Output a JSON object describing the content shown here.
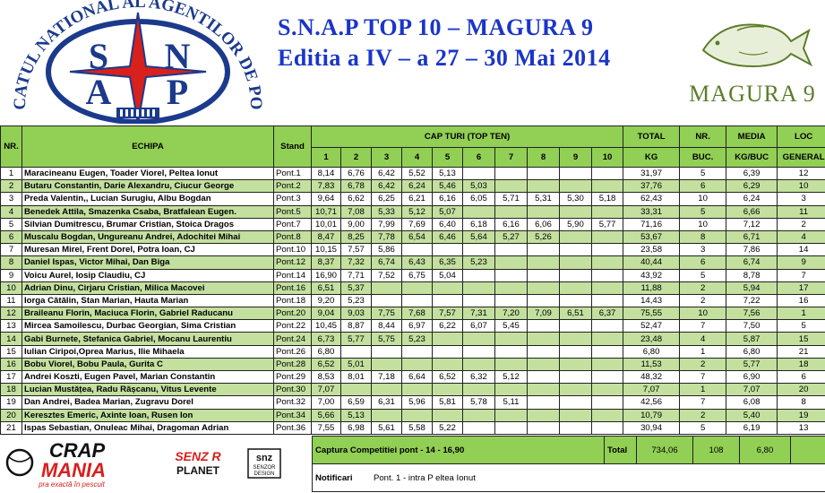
{
  "header": {
    "title_line1": "S.N.A.P    TOP 10 – MAGURA 9",
    "title_line2": "Editia a IV – a 27 – 30 Mai 2014",
    "snap_seal": {
      "ring_text": "SINDICATUL NATIONAL AL AGENTILOR DE POLITIE",
      "letters": [
        "S",
        "N",
        "A",
        "P"
      ]
    },
    "magura_logo": {
      "text": "MAGURA 9",
      "icon": "carp-fish-icon"
    }
  },
  "table": {
    "headers": {
      "nr": "NR.",
      "echipa": "ECHIPA",
      "stand": "Stand",
      "cap_turi": "CAP TURI    (TOP TEN)",
      "total": "TOTAL",
      "total_unit": "KG",
      "nr_buc": "NR.",
      "nr_buc_unit": "BUC.",
      "media": "MEDIA",
      "media_unit": "KG/BUC",
      "loc": "LOC",
      "loc_unit": "GENERAL",
      "cap_numbers": [
        "1",
        "2",
        "3",
        "4",
        "5",
        "6",
        "7",
        "8",
        "9",
        "10"
      ]
    },
    "rows": [
      {
        "nr": "1",
        "team": "Maracineanu Eugen, Toader Viorel, Peltea Ionut",
        "stand": "Pont.1",
        "caps": [
          "8,14",
          "6,76",
          "6,42",
          "5,52",
          "5,13",
          "",
          "",
          "",
          "",
          ""
        ],
        "total": "31,97",
        "buc": "5",
        "media": "6,39",
        "loc": "12"
      },
      {
        "nr": "2",
        "team": "Butaru Constantin, Darie Alexandru, Ciucur George",
        "stand": "Pont.2",
        "caps": [
          "7,83",
          "6,78",
          "6,42",
          "6,24",
          "5,46",
          "5,03",
          "",
          "",
          "",
          ""
        ],
        "total": "37,76",
        "buc": "6",
        "media": "6,29",
        "loc": "10"
      },
      {
        "nr": "3",
        "team": "Preda Valentin,, Lucian Surugiu, Albu Bogdan",
        "stand": "Pont.3",
        "caps": [
          "9,64",
          "6,62",
          "6,25",
          "6,21",
          "6,16",
          "6,05",
          "5,71",
          "5,31",
          "5,30",
          "5,18"
        ],
        "total": "62,43",
        "buc": "10",
        "media": "6,24",
        "loc": "3"
      },
      {
        "nr": "4",
        "team": "Benedek Attila, Smazenka Csaba, Bratfalean Eugen.",
        "stand": "Pont.5",
        "caps": [
          "10,71",
          "7,08",
          "5,33",
          "5,12",
          "5,07",
          "",
          "",
          "",
          "",
          ""
        ],
        "total": "33,31",
        "buc": "5",
        "media": "6,66",
        "loc": "11"
      },
      {
        "nr": "5",
        "team": "Silvian Dumitrescu, Brumar Cristian, Stoica Dragos",
        "stand": "Pont.7",
        "caps": [
          "10,01",
          "9,00",
          "7,99",
          "7,69",
          "6,40",
          "6,18",
          "6,16",
          "6,06",
          "5,90",
          "5,77"
        ],
        "total": "71,16",
        "buc": "10",
        "media": "7,12",
        "loc": "2"
      },
      {
        "nr": "6",
        "team": "Muscalu Bogdan, Ungureanu Andrei, Adochitei Mihai",
        "stand": "Pont.8",
        "caps": [
          "8,47",
          "8,25",
          "7,78",
          "6,54",
          "6,46",
          "5,64",
          "5,27",
          "5,26",
          "",
          ""
        ],
        "total": "53,67",
        "buc": "8",
        "media": "6,71",
        "loc": "4"
      },
      {
        "nr": "7",
        "team": "Muresan Mirel, Frent Dorel, Potra Ioan, CJ",
        "stand": "Pont.10",
        "caps": [
          "10,15",
          "7,57",
          "5,86",
          "",
          "",
          "",
          "",
          "",
          "",
          ""
        ],
        "total": "23,58",
        "buc": "3",
        "media": "7,86",
        "loc": "14"
      },
      {
        "nr": "8",
        "team": "Daniel Ispas, Victor Mihai, Dan Biga",
        "stand": "Pont.12",
        "caps": [
          "8,37",
          "7,32",
          "6,74",
          "6,43",
          "6,35",
          "5,23",
          "",
          "",
          "",
          ""
        ],
        "total": "40,44",
        "buc": "6",
        "media": "6,74",
        "loc": "9"
      },
      {
        "nr": "9",
        "team": "Voicu Aurel, Iosip Claudiu, CJ",
        "stand": "Pont.14",
        "caps": [
          "16,90",
          "7,71",
          "7,52",
          "6,75",
          "5,04",
          "",
          "",
          "",
          "",
          ""
        ],
        "total": "43,92",
        "buc": "5",
        "media": "8,78",
        "loc": "7"
      },
      {
        "nr": "10",
        "team": "Adrian Dinu, Cirjaru Cristian, Milica Macovei",
        "stand": "Pont.16",
        "caps": [
          "6,51",
          "5,37",
          "",
          "",
          "",
          "",
          "",
          "",
          "",
          ""
        ],
        "total": "11,88",
        "buc": "2",
        "media": "5,94",
        "loc": "17"
      },
      {
        "nr": "11",
        "team": "Iorga Cătălin, Stan Marian, Hauta Marian",
        "stand": "Pont.18",
        "caps": [
          "9,20",
          "5,23",
          "",
          "",
          "",
          "",
          "",
          "",
          "",
          ""
        ],
        "total": "14,43",
        "buc": "2",
        "media": "7,22",
        "loc": "16"
      },
      {
        "nr": "12",
        "team": "Braileanu Florin, Maciuca Florin, Gabriel Raducanu",
        "stand": "Pont.20",
        "caps": [
          "9,04",
          "9,03",
          "7,75",
          "7,68",
          "7,57",
          "7,31",
          "7,20",
          "7,09",
          "6,51",
          "6,37"
        ],
        "total": "75,55",
        "buc": "10",
        "media": "7,56",
        "loc": "1"
      },
      {
        "nr": "13",
        "team": "Mircea Samoilescu, Durbac Georgian, Sima Cristian",
        "stand": "Pont.22",
        "caps": [
          "10,45",
          "8,87",
          "8,44",
          "6,97",
          "6,22",
          "6,07",
          "5,45",
          "",
          "",
          ""
        ],
        "total": "52,47",
        "buc": "7",
        "media": "7,50",
        "loc": "5"
      },
      {
        "nr": "14",
        "team": "Gabi Burnete, Stefanica Gabriel, Mocanu Laurentiu",
        "stand": "Pont.24",
        "caps": [
          "6,73",
          "5,77",
          "5,75",
          "5,23",
          "",
          "",
          "",
          "",
          "",
          ""
        ],
        "total": "23,48",
        "buc": "4",
        "media": "5,87",
        "loc": "15"
      },
      {
        "nr": "15",
        "team": "Iulian Ciripoi,Oprea Marius, Ilie Mihaela",
        "stand": "Pont.26",
        "caps": [
          "6,80",
          "",
          "",
          "",
          "",
          "",
          "",
          "",
          "",
          ""
        ],
        "total": "6,80",
        "buc": "1",
        "media": "6,80",
        "loc": "21"
      },
      {
        "nr": "16",
        "team": "Bobu Viorel, Bobu Paula, Gurita C",
        "stand": "Pont.28",
        "caps": [
          "6,52",
          "5,01",
          "",
          "",
          "",
          "",
          "",
          "",
          "",
          ""
        ],
        "total": "11,53",
        "buc": "2",
        "media": "5,77",
        "loc": "18"
      },
      {
        "nr": "17",
        "team": "Andrei Koszti, Eugen Pavel, Marian Constantin",
        "stand": "Pont.29",
        "caps": [
          "8,53",
          "8,01",
          "7,18",
          "6,64",
          "6,52",
          "6,32",
          "5,12",
          "",
          "",
          ""
        ],
        "total": "48,32",
        "buc": "7",
        "media": "6,90",
        "loc": "6"
      },
      {
        "nr": "18",
        "team": "Lucian Mustățea, Radu Rășcanu, Vitus Levente",
        "stand": "Pont.30",
        "caps": [
          "7,07",
          "",
          "",
          "",
          "",
          "",
          "",
          "",
          "",
          ""
        ],
        "total": "7,07",
        "buc": "1",
        "media": "7,07",
        "loc": "20"
      },
      {
        "nr": "19",
        "team": "Dan Andrei, Badea Marian, Zugravu Dorel",
        "stand": "Pont.32",
        "caps": [
          "7,00",
          "6,59",
          "6,31",
          "5,96",
          "5,81",
          "5,78",
          "5,11",
          "",
          "",
          ""
        ],
        "total": "42,56",
        "buc": "7",
        "media": "6,08",
        "loc": "8"
      },
      {
        "nr": "20",
        "team": "Keresztes Emeric, Axinte Ioan, Rusen  Ion",
        "stand": "Pont.34",
        "caps": [
          "5,66",
          "5,13",
          "",
          "",
          "",
          "",
          "",
          "",
          "",
          ""
        ],
        "total": "10,79",
        "buc": "2",
        "media": "5,40",
        "loc": "19"
      },
      {
        "nr": "21",
        "team": "Ispas Sebastian, Onuleac Mihai, Dragoman Adrian",
        "stand": "Pont.36",
        "caps": [
          "7,55",
          "6,98",
          "5,61",
          "5,58",
          "5,22",
          "",
          "",
          "",
          "",
          ""
        ],
        "total": "30,94",
        "buc": "5",
        "media": "6,19",
        "loc": "13"
      }
    ]
  },
  "summary": {
    "captura_label": "Captura Competitiei  pont - 14 - 16,90",
    "total_label": "Total",
    "total_kg": "734,06",
    "total_buc": "108",
    "total_media": "6,80",
    "notificari_label": "Notificari",
    "notificari_text": "Pont. 1 - intra  P eltea Ionut"
  },
  "sponsors": {
    "crap_mania": {
      "line1": "CRAP",
      "line2": "MANIA",
      "tagline": "pra exactă în pescuit"
    },
    "senzor_planet": {
      "line1": "SENZ R",
      "line2": "PLANET"
    },
    "snz_design": {
      "line1": "snz",
      "line2": "SENZOR",
      "line3": "DESIGN"
    }
  },
  "colors": {
    "title_blue": "#1a35c8",
    "header_green": "#92cf55",
    "row_green": "#c3e09e",
    "magura_green": "#5d7d2b",
    "seal_blue": "#1b3a8c",
    "seal_red": "#d8201d"
  }
}
